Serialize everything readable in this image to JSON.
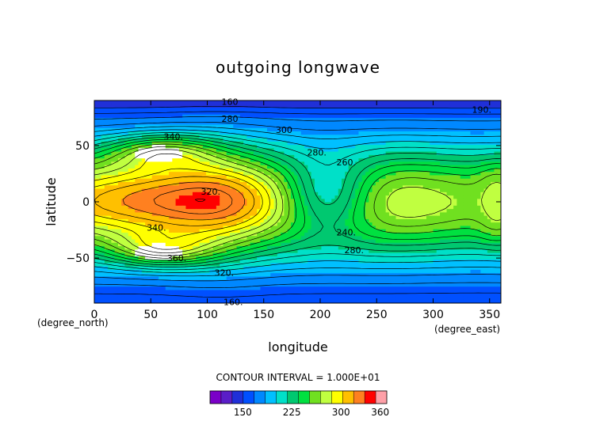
{
  "chart_data": {
    "type": "heatmap",
    "title": "outgoing longwave",
    "xlabel": "longitude",
    "ylabel": "latitude",
    "x_unit": "(degree_east)",
    "y_unit": "(degree_north)",
    "xlim": [
      0,
      360
    ],
    "ylim": [
      -90,
      90
    ],
    "x_ticks": [
      "0",
      "50",
      "100",
      "150",
      "200",
      "250",
      "300",
      "350"
    ],
    "y_ticks": [
      "50",
      "0",
      "−50"
    ],
    "contour_interval_text": "CONTOUR INTERVAL = 1.000E+01",
    "colorbar": {
      "tick_labels": [
        "150",
        "225",
        "300",
        "360"
      ],
      "tick_values": [
        150,
        225,
        300,
        360
      ],
      "range": [
        100,
        370
      ],
      "bins": 16,
      "colors": [
        "#7a00c8",
        "#5a1ec8",
        "#2030d8",
        "#0050ff",
        "#0088ff",
        "#00c0ff",
        "#00e0c8",
        "#00c870",
        "#00e040",
        "#70e020",
        "#c0ff40",
        "#ffff00",
        "#ffc000",
        "#ff8020",
        "#ff0000",
        "#ffa0a8"
      ]
    },
    "contour_labels": [
      {
        "text": "160",
        "lon": 120,
        "lat": 89
      },
      {
        "text": "190.",
        "lon": 343,
        "lat": 82
      },
      {
        "text": "280",
        "lon": 120,
        "lat": 74
      },
      {
        "text": "300",
        "lon": 168,
        "lat": 64
      },
      {
        "text": "340.",
        "lon": 70,
        "lat": 58
      },
      {
        "text": "280.",
        "lon": 197,
        "lat": 44
      },
      {
        "text": "260.",
        "lon": 223,
        "lat": 35
      },
      {
        "text": "320.",
        "lon": 103,
        "lat": 9
      },
      {
        "text": "240.",
        "lon": 223,
        "lat": -27
      },
      {
        "text": "340.",
        "lon": 55,
        "lat": -23
      },
      {
        "text": "280.",
        "lon": 230,
        "lat": -43
      },
      {
        "text": "360.",
        "lon": 73,
        "lat": -50
      },
      {
        "text": "320.",
        "lon": 115,
        "lat": -63
      },
      {
        "text": "160.",
        "lon": 123,
        "lat": -89
      }
    ]
  }
}
